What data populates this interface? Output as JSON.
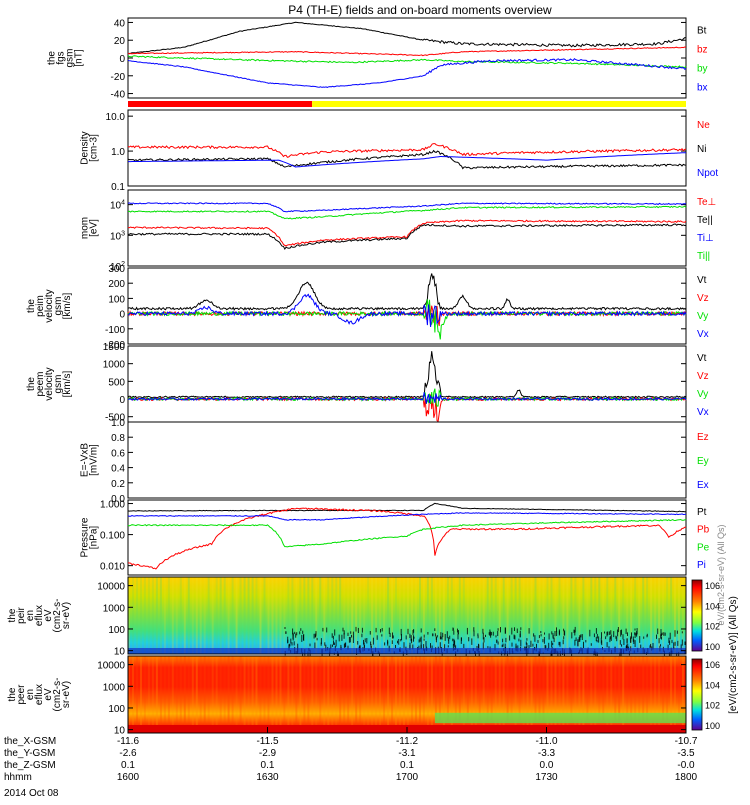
{
  "title": "P4 (TH-E) fields and on-board moments overview",
  "date_label": "2014 Oct 08",
  "time_axis": {
    "ticks": [
      "1600",
      "1630",
      "1700",
      "1730",
      "1800"
    ],
    "rows": [
      {
        "label": "the_X-GSM",
        "values": [
          "-11.6",
          "-11.5",
          "-11.2",
          "-11.0",
          "-10.7"
        ]
      },
      {
        "label": "the_Y-GSM",
        "values": [
          "-2.6",
          "-2.9",
          "-3.1",
          "-3.3",
          "-3.5"
        ]
      },
      {
        "label": "the_Z-GSM",
        "values": [
          "0.1",
          "0.1",
          "0.1",
          "0.0",
          "-0.0"
        ]
      },
      {
        "label": "hhmm",
        "values": [
          "1600",
          "1630",
          "1700",
          "1730",
          "1800"
        ]
      }
    ]
  },
  "colors": {
    "black": "#000000",
    "red": "#ff0000",
    "green": "#00e000",
    "blue": "#0000ff",
    "yellow": "#ffff00"
  },
  "mode_bar": {
    "segments": [
      {
        "end": 0.33,
        "color": "#ff0000"
      },
      {
        "end": 1.0,
        "color": "#ffff00"
      }
    ]
  },
  "colorbar": {
    "label": "[eV/(cm2-s-sr-eV)] (All Qs)",
    "overlay_label": "eV/(cm2-s-sr-eV) (All Qs)",
    "ticks": [
      "10^6",
      "10^4",
      "10^2",
      "10^0"
    ]
  },
  "chart_data": [
    {
      "id": "fgs",
      "type": "line",
      "ylabel": [
        "the",
        "fgs",
        "gsm",
        "[nT]"
      ],
      "ylim": [
        -45,
        45
      ],
      "yticks": [
        "40",
        "20",
        "0",
        "-20",
        "-40"
      ],
      "series": [
        {
          "name": "Bt",
          "color": "#000000"
        },
        {
          "name": "bz",
          "color": "#ff0000"
        },
        {
          "name": "by",
          "color": "#00e000"
        },
        {
          "name": "bx",
          "color": "#0000ff"
        }
      ]
    },
    {
      "id": "density",
      "type": "line",
      "scale": "log",
      "ylabel": [
        "Density",
        "[cm-3]"
      ],
      "ylim": [
        0.1,
        15
      ],
      "yticks": [
        "10.0",
        "1.0",
        "0.1"
      ],
      "series": [
        {
          "name": "Ne",
          "color": "#ff0000"
        },
        {
          "name": "Ni",
          "color": "#000000"
        },
        {
          "name": "Npot",
          "color": "#0000ff"
        }
      ]
    },
    {
      "id": "temperature",
      "type": "line",
      "scale": "log",
      "ylabel": [
        "mom",
        "[eV]"
      ],
      "ylim": [
        100,
        30000
      ],
      "yticks": [
        "10^4",
        "10^3",
        "10^2"
      ],
      "series": [
        {
          "name": "Te⊥",
          "color": "#ff0000"
        },
        {
          "name": "Te||",
          "color": "#000000"
        },
        {
          "name": "Ti⊥",
          "color": "#0000ff"
        },
        {
          "name": "Ti||",
          "color": "#00e000"
        }
      ]
    },
    {
      "id": "ion_velocity",
      "type": "line",
      "ylabel": [
        "the",
        "peim",
        "velocity",
        "gsm",
        "[km/s]"
      ],
      "ylim": [
        -200,
        300
      ],
      "yticks": [
        "300",
        "200",
        "100",
        "0",
        "-100",
        "-200"
      ],
      "series": [
        {
          "name": "Vt",
          "color": "#000000"
        },
        {
          "name": "Vz",
          "color": "#ff0000"
        },
        {
          "name": "Vy",
          "color": "#00e000"
        },
        {
          "name": "Vx",
          "color": "#0000ff"
        }
      ]
    },
    {
      "id": "electron_velocity",
      "type": "line",
      "ylabel": [
        "the",
        "peem",
        "velocity",
        "gsm",
        "[km/s]"
      ],
      "ylim": [
        -650,
        1500
      ],
      "yticks": [
        "1500",
        "1000",
        "500",
        "0",
        "-500"
      ],
      "series": [
        {
          "name": "Vt",
          "color": "#000000"
        },
        {
          "name": "Vz",
          "color": "#ff0000"
        },
        {
          "name": "Vy",
          "color": "#00e000"
        },
        {
          "name": "Vx",
          "color": "#0000ff"
        }
      ]
    },
    {
      "id": "efield",
      "type": "line",
      "ylabel": [
        "E=-VxB",
        "[mV/m]"
      ],
      "ylim": [
        0,
        1
      ],
      "yticks": [
        "1.0",
        "0.8",
        "0.6",
        "0.4",
        "0.2",
        "0.0"
      ],
      "series": [
        {
          "name": "Ez",
          "color": "#ff0000"
        },
        {
          "name": "Ey",
          "color": "#00e000"
        },
        {
          "name": "Ex",
          "color": "#0000ff"
        }
      ]
    },
    {
      "id": "pressure",
      "type": "line",
      "scale": "log",
      "ylabel": [
        "Pressure",
        "[nPa]"
      ],
      "ylim": [
        0.005,
        1.3
      ],
      "yticks": [
        "1.000",
        "0.100",
        "0.010"
      ],
      "series": [
        {
          "name": "Pt",
          "color": "#000000"
        },
        {
          "name": "Pb",
          "color": "#ff0000"
        },
        {
          "name": "Pe",
          "color": "#00e000"
        },
        {
          "name": "Pi",
          "color": "#0000ff"
        }
      ]
    },
    {
      "id": "ion_spectrogram",
      "type": "heatmap",
      "scale": "log",
      "ylabel": [
        "the",
        "peir",
        "en",
        "eflux",
        "eV",
        "(cm2-s-",
        "sr-eV)"
      ],
      "ylim": [
        7,
        25000
      ],
      "yticks": [
        "10000",
        "1000",
        "100",
        "10"
      ]
    },
    {
      "id": "electron_spectrogram",
      "type": "heatmap",
      "scale": "log",
      "ylabel": [
        "the",
        "peer",
        "en",
        "eflux",
        "eV",
        "(cm2-s-",
        "sr-eV)"
      ],
      "ylim": [
        7,
        25000
      ],
      "yticks": [
        "10000",
        "1000",
        "100",
        "10"
      ]
    }
  ]
}
